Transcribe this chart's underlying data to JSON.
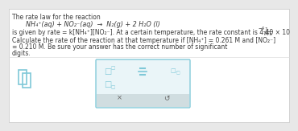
{
  "bg_color": "#e8e8e8",
  "panel_color": "#ffffff",
  "line1": "The rate law for the reaction",
  "line2": "NH₄⁺(aq) + NO₂⁻(aq)  →  N₂(g) + 2 H₂O (l)",
  "line3": "is given by rate = k[NH₄⁺][NO₂⁻]. At a certain temperature, the rate constant is 4.40 × 10",
  "line3_exp": "−4",
  "line3_frac_top": "1",
  "line3_frac_bot": "M·s",
  "line4": "Calculate the rate of the reaction at that temperature if [NH₄⁺] = 0.261 M and [NO₂⁻]",
  "line4b": "= 0.210 M. Be sure your answer has the correct number of significant",
  "line5": "digits.",
  "text_color": "#3a3a3a",
  "icon_color": "#7fc8d8",
  "toolbar_bg": "#eaf5f8",
  "toolbar_border": "#7fc8d8",
  "bottombar_bg": "#d0dde0",
  "fs": 5.5,
  "fs_eq": 5.8
}
